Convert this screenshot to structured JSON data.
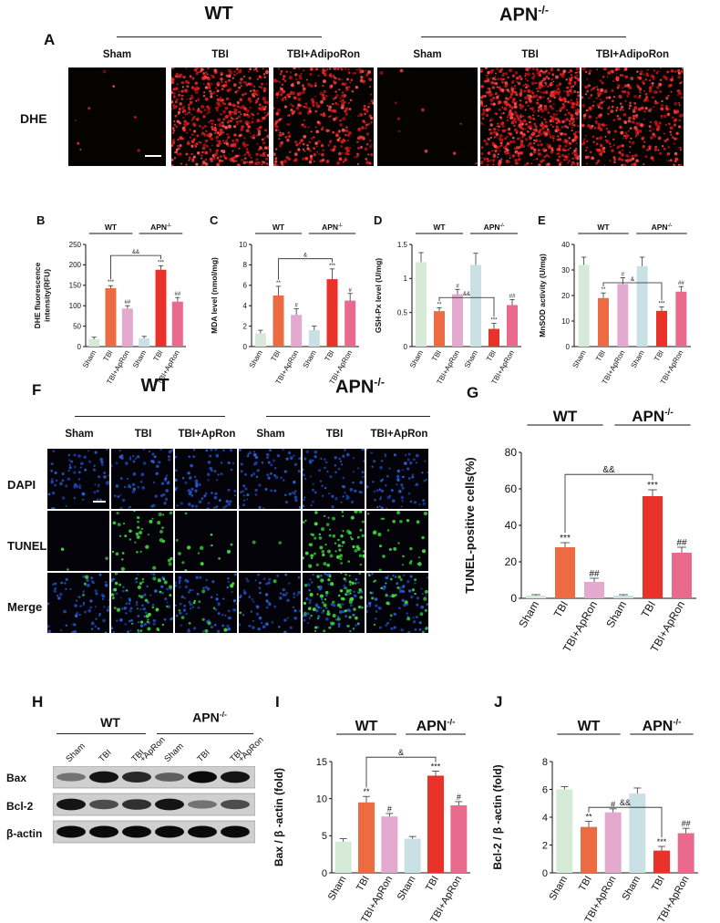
{
  "panelA": {
    "letter": "A",
    "group_wt": "WT",
    "group_apn": "APN",
    "group_apn_sup": "-/-",
    "columns": [
      "Sham",
      "TBI",
      "TBI+AdipoRon",
      "Sham",
      "TBI",
      "TBI+AdipoRon"
    ],
    "row_label": "DHE",
    "image_color": "#e31a1c"
  },
  "panelF": {
    "letter": "F",
    "group_wt": "WT",
    "group_apn": "APN",
    "group_apn_sup": "-/-",
    "columns": [
      "Sham",
      "TBI",
      "TBI+ApRon",
      "Sham",
      "TBI",
      "TBI+ApRon"
    ],
    "rows": [
      "DAPI",
      "TUNEL",
      "Merge"
    ],
    "dapi_color": "#2a5fd8",
    "tunel_color": "#3fdc3f"
  },
  "panelH": {
    "letter": "H",
    "group_wt": "WT",
    "group_apn": "APN",
    "group_apn_sup": "-/-",
    "lanes": [
      "Sham",
      "TBI",
      "TBI\n+ApRon",
      "Sham",
      "TBI",
      "TBI\n+ApRon"
    ],
    "bands": [
      "Bax",
      "Bcl-2",
      "β-actin"
    ]
  },
  "colors": {
    "sham_wt": "#d5ead7",
    "tbi_wt": "#ec6b43",
    "apron_wt": "#e3a9cf",
    "sham_apn": "#c9e1e4",
    "tbi_apn": "#e8322a",
    "apron_apn": "#e96a8d"
  },
  "chart_data": [
    {
      "id": "B",
      "type": "bar",
      "panel_letter": "B",
      "ylabel": "DHE fluorescence\nintensity(RFU)",
      "ylim": [
        0,
        250
      ],
      "yticks": [
        0,
        50,
        100,
        150,
        200,
        250
      ],
      "categories": [
        "Sham",
        "TBI",
        "TBI+ApRon",
        "Sham",
        "TBI",
        "TBI+ApRon"
      ],
      "values": [
        18,
        143,
        93,
        20,
        188,
        110
      ],
      "errors": [
        5,
        6,
        7,
        5,
        10,
        10
      ],
      "stars": [
        "",
        "***",
        "##",
        "",
        "***",
        "##"
      ],
      "comparison": "&&",
      "group_wt": "WT",
      "group_apn": "APN",
      "group_apn_sup": "-/-"
    },
    {
      "id": "C",
      "type": "bar",
      "panel_letter": "C",
      "ylabel": "MDA level (nmol/mg)",
      "ylim": [
        0,
        10
      ],
      "yticks": [
        0,
        2,
        4,
        6,
        8,
        10
      ],
      "categories": [
        "Sham",
        "TBI",
        "TBI+ApRon",
        "Sham",
        "TBI",
        "TBI+ApRon"
      ],
      "values": [
        1.3,
        5.0,
        3.1,
        1.6,
        6.6,
        4.5
      ],
      "errors": [
        0.3,
        0.9,
        0.6,
        0.4,
        1.0,
        0.7
      ],
      "stars": [
        "",
        "**",
        "#",
        "",
        "***",
        "#"
      ],
      "comparison": "&",
      "group_wt": "WT",
      "group_apn": "APN",
      "group_apn_sup": "-/-"
    },
    {
      "id": "D",
      "type": "bar",
      "panel_letter": "D",
      "ylabel": "GSH-Px level (U/mg)",
      "ylim": [
        0,
        1.5
      ],
      "yticks": [
        0.0,
        0.5,
        1.0,
        1.5
      ],
      "categories": [
        "Sham",
        "TBI",
        "TBI+ApRon",
        "Sham",
        "TBI",
        "TBI+ApRon"
      ],
      "values": [
        1.24,
        0.52,
        0.77,
        1.2,
        0.26,
        0.61
      ],
      "errors": [
        0.14,
        0.05,
        0.07,
        0.17,
        0.08,
        0.08
      ],
      "stars": [
        "",
        "**",
        "#",
        "",
        "***",
        "##"
      ],
      "comparison": "&&",
      "group_wt": "WT",
      "group_apn": "APN",
      "group_apn_sup": "-/-"
    },
    {
      "id": "E",
      "type": "bar",
      "panel_letter": "E",
      "ylabel": "MnSOD activity (U/mg)",
      "ylim": [
        0,
        40
      ],
      "yticks": [
        0,
        10,
        20,
        30,
        40
      ],
      "categories": [
        "Sham",
        "TBI",
        "TBI+ApRon",
        "Sham",
        "TBI",
        "TBI+ApRon"
      ],
      "values": [
        32,
        19,
        24.5,
        31.5,
        14,
        21.5
      ],
      "errors": [
        3,
        2,
        2.5,
        3.5,
        1.5,
        2
      ],
      "stars": [
        "",
        "**",
        "#",
        "",
        "***",
        "##"
      ],
      "comparison": "&",
      "group_wt": "WT",
      "group_apn": "APN",
      "group_apn_sup": "-/-"
    },
    {
      "id": "G",
      "type": "bar",
      "panel_letter": "G",
      "ylabel": "TUNEL-positive cells(%)",
      "ylim": [
        0,
        80
      ],
      "yticks": [
        0,
        20,
        40,
        60,
        80
      ],
      "categories": [
        "Sham",
        "TBI",
        "TBI+ApRon",
        "Sham",
        "TBI",
        "TBI+ApRon"
      ],
      "values": [
        1.5,
        28,
        9,
        1.5,
        56,
        25
      ],
      "errors": [
        0.5,
        2.5,
        2,
        0.5,
        3.5,
        3
      ],
      "stars": [
        "",
        "***",
        "##",
        "",
        "***",
        "##"
      ],
      "comparison": "&&",
      "group_wt": "WT",
      "group_apn": "APN",
      "group_apn_sup": "-/-"
    },
    {
      "id": "I",
      "type": "bar",
      "panel_letter": "I",
      "ylabel": "Bax / β -actin (fold)",
      "ylim": [
        0,
        15
      ],
      "yticks": [
        0,
        5,
        10,
        15
      ],
      "categories": [
        "Sham",
        "TBI",
        "TBI+ApRon",
        "Sham",
        "TBI",
        "TBI+ApRon"
      ],
      "values": [
        4.2,
        9.5,
        7.6,
        4.6,
        13.1,
        9.1
      ],
      "errors": [
        0.4,
        0.8,
        0.4,
        0.3,
        0.6,
        0.5
      ],
      "stars": [
        "",
        "**",
        "#",
        "",
        "***",
        "#"
      ],
      "comparison": "&",
      "group_wt": "WT",
      "group_apn": "APN",
      "group_apn_sup": "-/-"
    },
    {
      "id": "J",
      "type": "bar",
      "panel_letter": "J",
      "ylabel": "Bcl-2 / β -actin (fold)",
      "ylim": [
        0,
        8
      ],
      "yticks": [
        0,
        2,
        4,
        6,
        8
      ],
      "categories": [
        "Sham",
        "TBI",
        "TBI+ApRon",
        "Sham",
        "TBI",
        "TBI+ApRon"
      ],
      "values": [
        6.0,
        3.3,
        4.35,
        5.7,
        1.6,
        2.85
      ],
      "errors": [
        0.2,
        0.4,
        0.25,
        0.4,
        0.3,
        0.35
      ],
      "stars": [
        "",
        "**",
        "#",
        "",
        "***",
        "##"
      ],
      "comparison": "&&",
      "group_wt": "WT",
      "group_apn": "APN",
      "group_apn_sup": "-/-"
    }
  ]
}
